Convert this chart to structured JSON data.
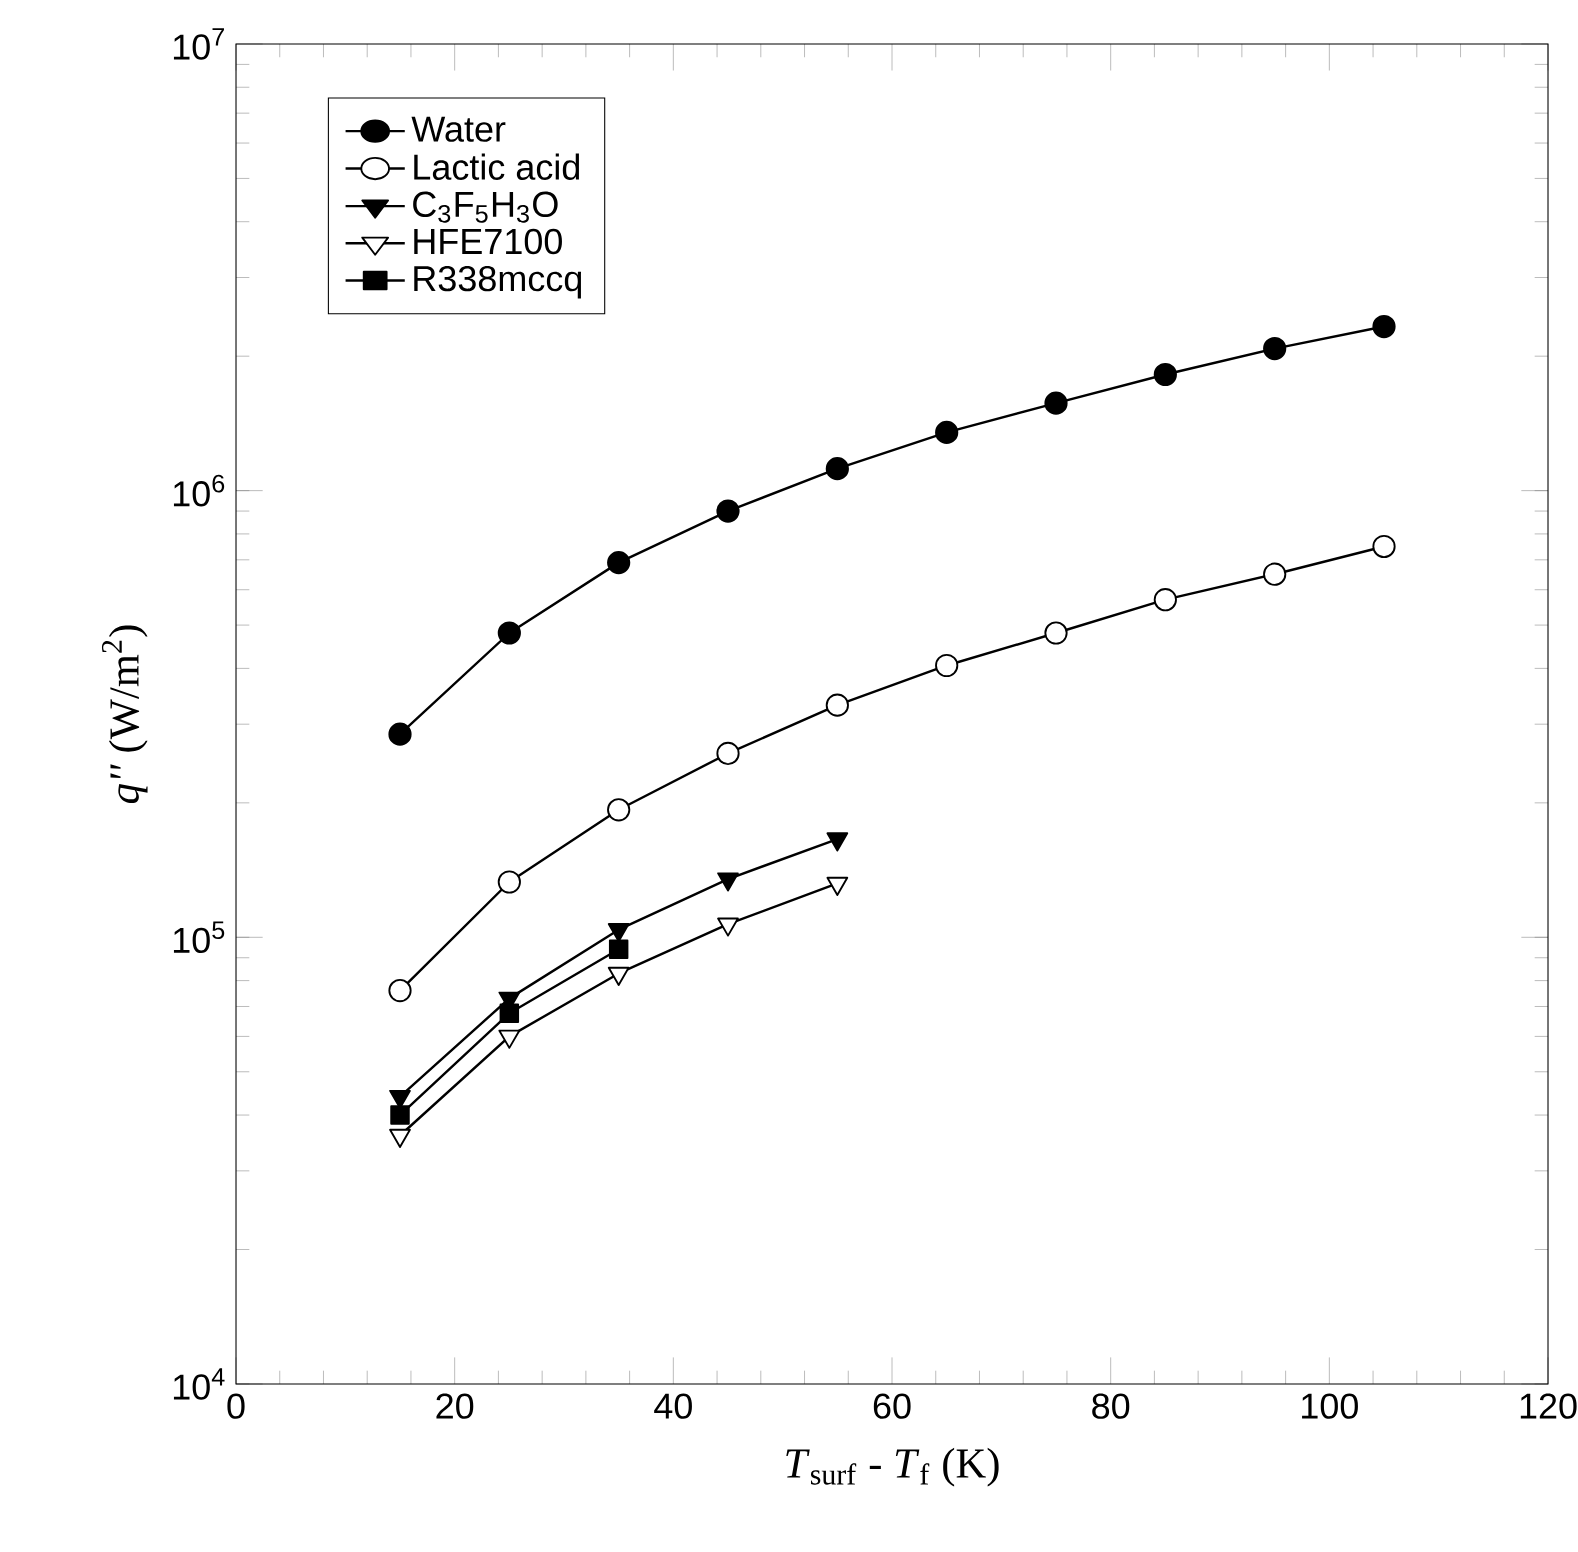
{
  "chart_data": {
    "type": "line",
    "xlabel": "*T*$_{surf}$ - *T*$_{f}$ (K)",
    "ylabel": "*q''* (W/m$^{2}$)",
    "log": "y",
    "xlim": [
      0,
      120
    ],
    "xticks": [
      0,
      20,
      40,
      60,
      80,
      100,
      120
    ],
    "ylim": [
      10000,
      10000000
    ],
    "yticks": [
      {
        "value": 10000,
        "label": "10$^{4}$"
      },
      {
        "value": 100000,
        "label": "10$^{5}$"
      },
      {
        "value": 1000000,
        "label": "10$^{6}$"
      },
      {
        "value": 10000000,
        "label": "10$^{7}$"
      }
    ],
    "grid": false,
    "legend": "top left",
    "line_style": "solid",
    "series": [
      {
        "name": "Water",
        "color": "#000000",
        "marker": "circle",
        "x": [
          15,
          25,
          35,
          45,
          55,
          65,
          75,
          85,
          95,
          105
        ],
        "values": [
          285000,
          480000,
          690000,
          900000,
          1120000,
          1350000,
          1570000,
          1820000,
          2080000,
          2330000
        ]
      },
      {
        "name": "Lactic acid",
        "color": "#000000",
        "marker": "circle-open",
        "x": [
          15,
          25,
          35,
          45,
          55,
          65,
          75,
          85,
          95,
          105
        ],
        "values": [
          76000,
          133000,
          193000,
          258000,
          331000,
          406000,
          480000,
          570000,
          650000,
          750000
        ]
      },
      {
        "name": "C$_{3}$F$_{5}$H$_{3}$O",
        "color": "#000000",
        "marker": "triangle-down",
        "x": [
          15,
          25,
          35,
          45,
          55
        ],
        "values": [
          44000,
          73000,
          104000,
          135000,
          166000
        ]
      },
      {
        "name": "HFE7100",
        "color": "#000000",
        "marker": "triangle-down-open",
        "x": [
          15,
          25,
          35,
          45,
          55
        ],
        "values": [
          36000,
          60000,
          83000,
          107000,
          132000
        ]
      },
      {
        "name": "R338mccq",
        "color": "#000000",
        "marker": "square",
        "x": [
          15,
          25,
          35
        ],
        "values": [
          40000,
          67600,
          94000
        ]
      }
    ]
  }
}
